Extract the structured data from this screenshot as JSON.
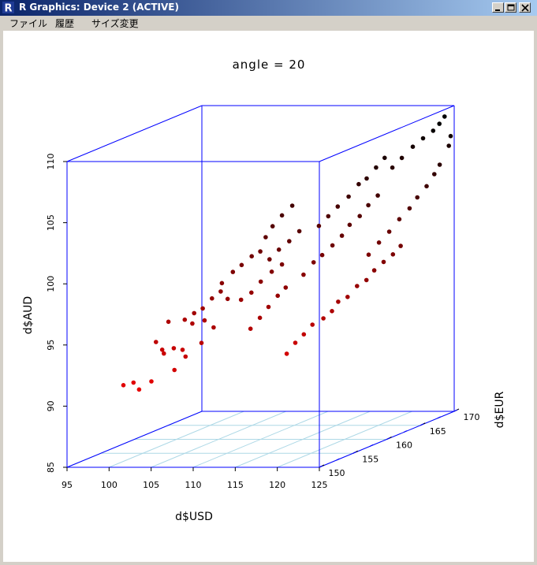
{
  "window": {
    "title": "R Graphics: Device 2 (ACTIVE)",
    "app_icon": "r-logo-icon",
    "controls": [
      "minimize-icon",
      "maximize-icon",
      "close-icon"
    ]
  },
  "menu": {
    "items": [
      "ファイル",
      "履歴",
      "サイズ変更"
    ]
  },
  "chart_data": {
    "type": "scatter",
    "projection": "3d-box",
    "title": "angle = 20",
    "xlabel": "d$USD",
    "ylabel": "d$AUD",
    "zlabel": "d$EUR",
    "xlim": [
      95,
      125
    ],
    "ylim": [
      85,
      110
    ],
    "zlim": [
      150,
      170
    ],
    "x_ticks": [
      "95",
      "100",
      "105",
      "110",
      "115",
      "120",
      "125"
    ],
    "y_ticks": [
      "85",
      "90",
      "95",
      "100",
      "105",
      "110"
    ],
    "z_ticks": [
      "150",
      "155",
      "160",
      "165",
      "170"
    ],
    "grid": "base plane only",
    "colors": {
      "box": "#0000ff",
      "grid": "#add8e6",
      "low": "#ff0000",
      "high": "#000000"
    },
    "points": [
      [
        98.5,
        90.8,
        154
      ],
      [
        99.3,
        90.9,
        154.5
      ],
      [
        100.2,
        90.4,
        154.2
      ],
      [
        101.1,
        90.9,
        154.9
      ],
      [
        99.8,
        93.6,
        157.2
      ],
      [
        100.3,
        92.9,
        157.5
      ],
      [
        100.9,
        92.7,
        157
      ],
      [
        101.6,
        93.0,
        157.6
      ],
      [
        102.4,
        92.8,
        157.9
      ],
      [
        100.4,
        95.0,
        158.3
      ],
      [
        102.1,
        95.1,
        158.6
      ],
      [
        103.4,
        94.9,
        158.1
      ],
      [
        104.3,
        95.0,
        158.8
      ],
      [
        104.5,
        96.0,
        157
      ],
      [
        105.2,
        96.3,
        157.4
      ],
      [
        105.9,
        97.0,
        157.9
      ],
      [
        106.7,
        97.5,
        158.2
      ],
      [
        107.2,
        96.8,
        158.6
      ],
      [
        104.4,
        92.0,
        154.2
      ],
      [
        105.4,
        93.0,
        154.6
      ],
      [
        106.9,
        94.0,
        155.1
      ],
      [
        108.1,
        95.2,
        155.4
      ],
      [
        106.2,
        98.0,
        159
      ],
      [
        107.1,
        98.8,
        159.5
      ],
      [
        107.9,
        99.3,
        159.8
      ],
      [
        108.7,
        99.9,
        160.3
      ],
      [
        109.4,
        100.2,
        160.7
      ],
      [
        109.8,
        101.3,
        161
      ],
      [
        110.3,
        102.1,
        161.4
      ],
      [
        111.1,
        102.9,
        161.8
      ],
      [
        112.0,
        103.6,
        162.2
      ],
      [
        108.0,
        96.5,
        159.6
      ],
      [
        108.9,
        97.0,
        160
      ],
      [
        109.7,
        97.8,
        160.4
      ],
      [
        110.6,
        98.5,
        160.9
      ],
      [
        111.5,
        99.0,
        161.3
      ],
      [
        113.1,
        92.0,
        160
      ],
      [
        113.8,
        92.8,
        160.4
      ],
      [
        114.5,
        93.4,
        160.8
      ],
      [
        115.2,
        94.1,
        161.2
      ],
      [
        116.1,
        94.5,
        161.7
      ],
      [
        116.8,
        95.0,
        162.1
      ],
      [
        117.3,
        95.7,
        162.4
      ],
      [
        118.1,
        96.0,
        162.8
      ],
      [
        118.9,
        96.8,
        163.2
      ],
      [
        119.7,
        97.2,
        163.6
      ],
      [
        120.3,
        97.9,
        164
      ],
      [
        121.1,
        98.5,
        164.4
      ],
      [
        121.8,
        99.0,
        164.9
      ],
      [
        122.4,
        99.6,
        165.3
      ],
      [
        113.5,
        98.0,
        162
      ],
      [
        114.3,
        98.9,
        162.5
      ],
      [
        115.0,
        99.4,
        162.9
      ],
      [
        115.9,
        100.1,
        163.3
      ],
      [
        116.7,
        100.8,
        163.7
      ],
      [
        117.3,
        101.6,
        164.1
      ],
      [
        118.1,
        102.2,
        164.6
      ],
      [
        118.8,
        103.0,
        165
      ],
      [
        119.6,
        103.7,
        165.4
      ],
      [
        115.0,
        101.9,
        162.4
      ],
      [
        115.8,
        102.6,
        162.8
      ],
      [
        116.6,
        103.3,
        163.2
      ],
      [
        117.5,
        104.0,
        163.7
      ],
      [
        118.3,
        104.9,
        164.2
      ],
      [
        119.0,
        105.3,
        164.5
      ],
      [
        119.8,
        106.1,
        164.9
      ],
      [
        120.5,
        106.8,
        165.3
      ],
      [
        119.0,
        99.0,
        164.8
      ],
      [
        119.9,
        99.9,
        165.2
      ],
      [
        120.8,
        100.7,
        165.6
      ],
      [
        121.6,
        101.6,
        166.1
      ],
      [
        122.5,
        102.4,
        166.5
      ],
      [
        123.1,
        103.2,
        166.9
      ],
      [
        123.8,
        104.0,
        167.4
      ],
      [
        124.4,
        104.9,
        167.8
      ],
      [
        124.8,
        105.6,
        168.1
      ],
      [
        120.7,
        105.8,
        166.2
      ],
      [
        121.5,
        106.5,
        166.6
      ],
      [
        122.4,
        107.3,
        167.1
      ],
      [
        123.3,
        107.9,
        167.5
      ],
      [
        124.1,
        108.4,
        168
      ],
      [
        124.6,
        108.9,
        168.3
      ],
      [
        124.9,
        109.4,
        168.7
      ],
      [
        125.0,
        106.9,
        169.2
      ],
      [
        124.9,
        107.6,
        169.6
      ],
      [
        110.4,
        94.5,
        158
      ],
      [
        111.2,
        95.3,
        158.4
      ],
      [
        111.9,
        96.1,
        158.8
      ],
      [
        112.6,
        96.9,
        159.3
      ],
      [
        113.3,
        97.5,
        159.6
      ],
      [
        111.7,
        99.9,
        159.2
      ],
      [
        112.5,
        100.6,
        159.6
      ],
      [
        113.4,
        101.2,
        160
      ],
      [
        114.2,
        101.9,
        160.5
      ]
    ]
  }
}
